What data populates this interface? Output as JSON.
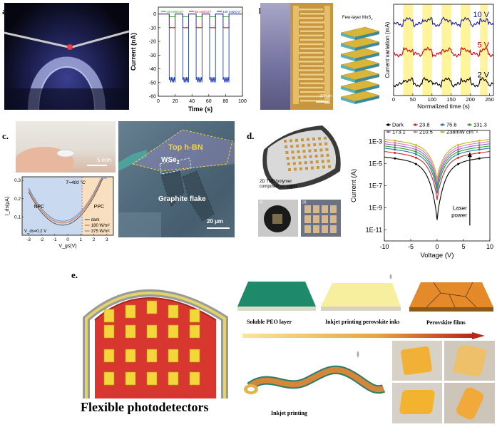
{
  "panels": {
    "a": {
      "label": "a."
    },
    "b": {
      "label": "b."
    },
    "c": {
      "label": "c."
    },
    "d": {
      "label": "d."
    },
    "e": {
      "label": "e."
    }
  },
  "b_photo": {
    "scale_text": "200 µm",
    "mos2_text": "Few-layer MoS",
    "mos2_sub": "2"
  },
  "c_photo": {
    "scale_text": "5 mm"
  },
  "c_micro": {
    "top_text": "Top h-BN",
    "wse_text": "WSe",
    "wse_sub": "2",
    "graphite_text": "Graphite flake",
    "scale_text": "20 µm"
  },
  "d_photo": {
    "caption_line1": "2D TMD/polymer",
    "caption_line2": "composite on paper",
    "sub_i": "(i)",
    "sub_ii": "(ii)"
  },
  "e_panel": {
    "title": "Flexible photodetectors",
    "step1": "Soluble PEO layer",
    "step2": "Inkjet printing perovskite inks",
    "step3": "Perovskite films",
    "step4": "Inkjet printing"
  },
  "chart_data": [
    {
      "id": "a",
      "type": "line",
      "xlabel": "Time (s)",
      "ylabel": "Current (nA)",
      "xlim": [
        0,
        100
      ],
      "ylim": [
        -60,
        5
      ],
      "xticks": [
        "0",
        "20",
        "40",
        "60",
        "80",
        "100"
      ],
      "yticks": [
        "0",
        "-10",
        "-20",
        "-30",
        "-40",
        "-50",
        "-60"
      ],
      "legend": [
        "38 mW/cm²",
        "96 mW/cm²",
        "439 mW/cm²"
      ],
      "colors": [
        "#2ca02c",
        "#d62728",
        "#1f3fbf"
      ],
      "on_windows": [
        [
          13,
          20
        ],
        [
          29,
          36
        ],
        [
          45,
          52
        ],
        [
          61,
          68
        ],
        [
          77,
          84
        ]
      ],
      "levels": [
        -2,
        -10,
        -48
      ],
      "dark": 0
    },
    {
      "id": "b",
      "type": "line",
      "xlabel": "Normalized time (s)",
      "ylabel": "Current variation (mA)",
      "xlim": [
        0,
        260
      ],
      "xticks": [
        "0",
        "50",
        "100",
        "150",
        "200",
        "250"
      ],
      "series": [
        {
          "name": "10 V",
          "color": "#1a1aa0",
          "base": 0.78
        },
        {
          "name": "5 V",
          "color": "#d00000",
          "base": 0.45
        },
        {
          "name": "2 V",
          "color": "#000000",
          "base": 0.12
        }
      ],
      "highlight_windows": [
        [
          25,
          50
        ],
        [
          75,
          100
        ],
        [
          125,
          150
        ],
        [
          175,
          200
        ],
        [
          225,
          245
        ]
      ]
    },
    {
      "id": "c",
      "type": "line",
      "xlabel": "V_gs(V)",
      "ylabel": "I_ds(µA)",
      "xlim": [
        -3.5,
        3.5
      ],
      "ylim": [
        0.0,
        0.32
      ],
      "xticks": [
        "-3",
        "-2",
        "-1",
        "0",
        "1",
        "2",
        "3"
      ],
      "yticks": [
        "0.1",
        "0.2",
        "0.3"
      ],
      "region_labels": [
        "NPC",
        "PPC"
      ],
      "annotation_T": "T=400 °C",
      "annotation_V": "V_ds=0.2 V",
      "legend": [
        "dark",
        "180 W/m²",
        "375 W/m²"
      ],
      "colors": [
        "#555555",
        "#e07020",
        "#6a8fd0"
      ]
    },
    {
      "id": "d",
      "type": "line",
      "xlabel": "Voltage (V)",
      "ylabel": "Current (A)",
      "xlim": [
        -10,
        10
      ],
      "xticks": [
        "-10",
        "-5",
        "0",
        "5",
        "10"
      ],
      "yticks": [
        "1E-3",
        "1E-5",
        "1E-7",
        "1E-9",
        "1E-11"
      ],
      "legend": [
        "Dark",
        "23.8",
        "75.6",
        "131.3",
        "173.1",
        "210.5",
        "238mW cm⁻²"
      ],
      "colors": [
        "#000000",
        "#d62728",
        "#1f77b4",
        "#2ca02c",
        "#9467bd",
        "#e377c2",
        "#bcbd22"
      ],
      "log_min_current": [
        -9.3,
        -7.5,
        -6.9,
        -6.5,
        -6.2,
        -5.9,
        -5.6
      ],
      "log_max_current": [
        -4.4,
        -3.9,
        -3.6,
        -3.4,
        -3.2,
        -3.0,
        -2.8
      ],
      "arrow_label_1": "Laser",
      "arrow_label_2": "power"
    }
  ]
}
